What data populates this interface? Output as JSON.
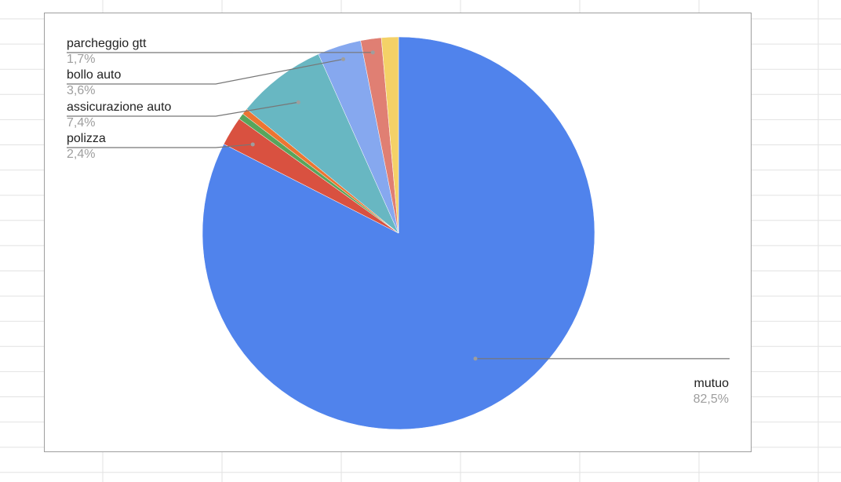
{
  "chart_data": {
    "type": "pie",
    "title": "",
    "start": "top, clockwise",
    "legend": "none (callout labels)",
    "slices": [
      {
        "label": "mutuo",
        "value": 82.5,
        "value_label": "82,5%",
        "color": "#5083ec"
      },
      {
        "label": "polizza",
        "value": 2.4,
        "value_label": "2,4%",
        "color": "#d95140"
      },
      {
        "label": "",
        "value": 0.5,
        "color": "#58a55c"
      },
      {
        "label": "",
        "value": 0.5,
        "color": "#ec7532"
      },
      {
        "label": "assicurazione auto",
        "value": 7.4,
        "value_label": "7,4%",
        "color": "#68b7c2"
      },
      {
        "label": "bollo auto",
        "value": 3.6,
        "value_label": "3,6%",
        "color": "#86a8ef"
      },
      {
        "label": "parcheggio gtt",
        "value": 1.7,
        "value_label": "1,7%",
        "color": "#e07f73"
      },
      {
        "label": "",
        "value": 1.4,
        "color": "#f4d167"
      }
    ]
  }
}
